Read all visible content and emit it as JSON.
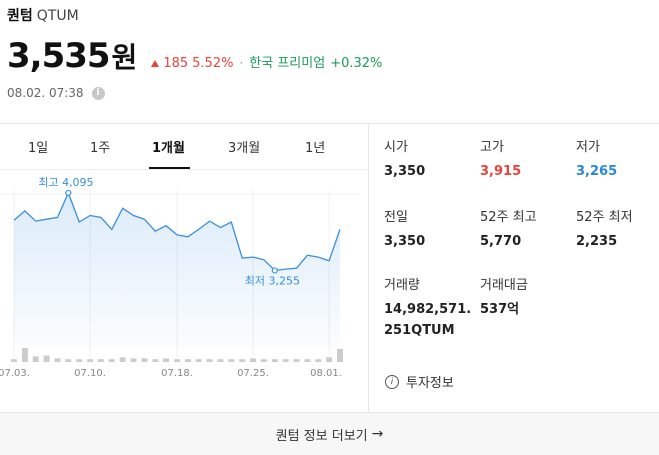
{
  "coin": {
    "name_kr": "퀀텀",
    "name_en": "QTUM"
  },
  "price": {
    "value": "3,535",
    "unit": "원"
  },
  "change": {
    "amount": "185",
    "percent": "5.52%"
  },
  "premium": {
    "label": "한국 프리미엄",
    "value": "+0.32%"
  },
  "timestamp": "08.02. 07:38",
  "tabs": [
    {
      "label": "1일"
    },
    {
      "label": "1주"
    },
    {
      "label": "1개월",
      "active": true
    },
    {
      "label": "3개월"
    },
    {
      "label": "1년"
    }
  ],
  "stats": {
    "open": {
      "label": "시가",
      "value": "3,350"
    },
    "high": {
      "label": "고가",
      "value": "3,915"
    },
    "low": {
      "label": "저가",
      "value": "3,265"
    },
    "prev": {
      "label": "전일",
      "value": "3,350"
    },
    "high52": {
      "label": "52주 최고",
      "value": "5,770"
    },
    "low52": {
      "label": "52주 최저",
      "value": "2,235"
    },
    "volume": {
      "label": "거래량",
      "value": "14,982,571.251QTUM"
    },
    "amount": {
      "label": "거래대금",
      "value": "537억"
    }
  },
  "invest_info_label": "투자정보",
  "more_label": "퀀텀 정보 더보기",
  "colors": {
    "up": "#e8443c",
    "down": "#2a86d6",
    "premium": "#1a9c54",
    "line": "#3a8fe0"
  },
  "chart_data": {
    "type": "line",
    "x": [
      "07.03.",
      "07.04.",
      "07.05.",
      "07.06.",
      "07.07.",
      "07.08.",
      "07.09.",
      "07.10.",
      "07.11.",
      "07.12.",
      "07.13.",
      "07.14.",
      "07.15.",
      "07.16.",
      "07.17.",
      "07.18.",
      "07.19.",
      "07.20.",
      "07.21.",
      "07.22.",
      "07.23.",
      "07.24.",
      "07.25.",
      "07.26.",
      "07.27.",
      "07.28.",
      "07.29.",
      "07.30.",
      "07.31.",
      "08.01.",
      "08.02."
    ],
    "values": [
      3800,
      3900,
      3790,
      3810,
      3830,
      4095,
      3780,
      3850,
      3830,
      3700,
      3930,
      3850,
      3810,
      3680,
      3740,
      3640,
      3620,
      3700,
      3790,
      3720,
      3780,
      3390,
      3400,
      3370,
      3255,
      3270,
      3280,
      3420,
      3400,
      3360,
      3700
    ],
    "volume": [
      3,
      15,
      6,
      7,
      4,
      3,
      3,
      3,
      3,
      3,
      5,
      4,
      4,
      3,
      4,
      3,
      3,
      3,
      3,
      3,
      3,
      3,
      4,
      3,
      3,
      3,
      3,
      3,
      3,
      5,
      14
    ],
    "x_ticks": [
      "07.03.",
      "07.10.",
      "07.18.",
      "07.25.",
      "08.01."
    ],
    "max_label": "최고 4,095",
    "min_label": "최저 3,255",
    "max_index": 5,
    "min_index": 24,
    "ylim": [
      3000,
      4300
    ]
  }
}
